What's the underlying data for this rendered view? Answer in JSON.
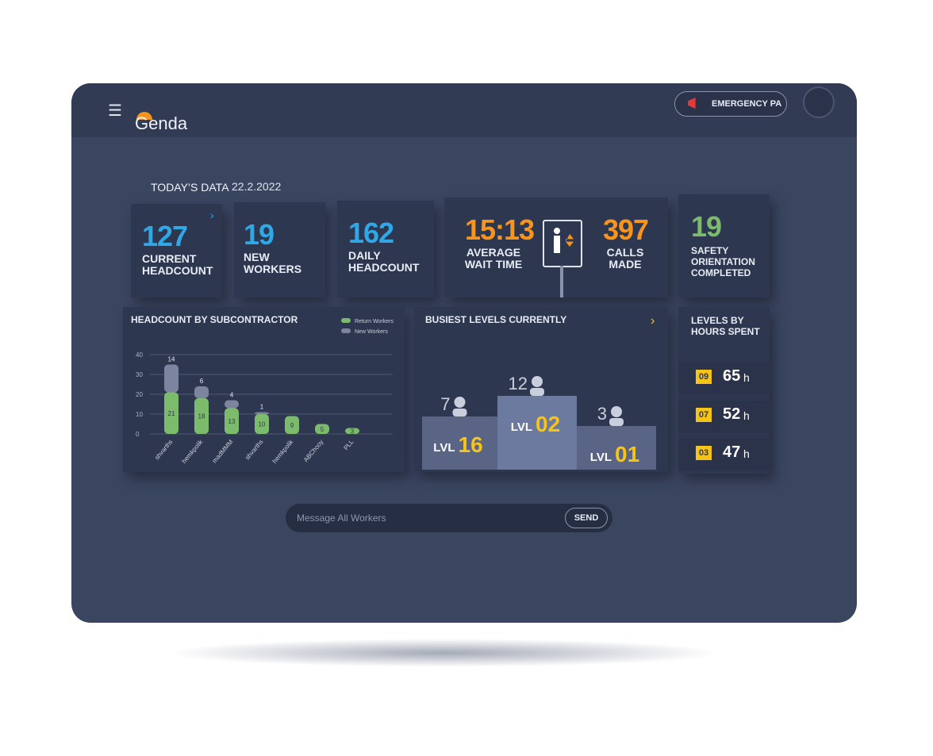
{
  "header": {
    "logo": "Genda",
    "emergency": "EMERGENCY PA"
  },
  "today": {
    "label": "TODAY’S DATA",
    "date": "22.2.2022"
  },
  "stats": [
    {
      "value": 127,
      "label": "CURRENT HEADCOUNT"
    },
    {
      "value": 19,
      "label": "NEW WORKERS"
    },
    {
      "value": 162,
      "label": "DAILY HEADCOUNT"
    },
    {
      "value": "15:13",
      "label": "AVERAGE WAIT TIME"
    },
    {
      "value": 397,
      "label": "CALLS MADE"
    },
    {
      "value": 19,
      "label": "SAFETY ORIENTATION COMPLETED"
    }
  ],
  "chart_data": {
    "type": "bar",
    "stacked": true,
    "title": "HEADCOUNT BY SUBCONTRACTOR",
    "categories": [
      "shvarths",
      "hemkpolik",
      "madMMM",
      "shvarths",
      "hemkpolik",
      "ABChooy",
      "PLL"
    ],
    "series": [
      {
        "name": "Return Workers",
        "color": "#7dbb6c",
        "values": [
          21,
          18,
          13,
          10,
          9,
          5,
          3
        ]
      },
      {
        "name": "New Workers",
        "color": "#7c84a0",
        "values": [
          14,
          6,
          4,
          1,
          null,
          null,
          null
        ]
      }
    ],
    "ylim": [
      0,
      40
    ],
    "yticks": [
      0,
      10,
      20,
      30,
      40
    ],
    "grid": true
  },
  "busiest": {
    "title": "BUSIEST LEVELS CURRENTLY",
    "prefix": "LVL",
    "levels": [
      {
        "level": "16",
        "count": 7
      },
      {
        "level": "02",
        "count": 12
      },
      {
        "level": "01",
        "count": 3
      }
    ]
  },
  "hours": {
    "title": "LEVELS BY HOURS SPENT",
    "unit": "h",
    "items": [
      {
        "level": "09",
        "hours": 65
      },
      {
        "level": "07",
        "hours": 52
      },
      {
        "level": "03",
        "hours": 47
      }
    ]
  },
  "message": {
    "placeholder": "Message All Workers",
    "button": "SEND"
  }
}
